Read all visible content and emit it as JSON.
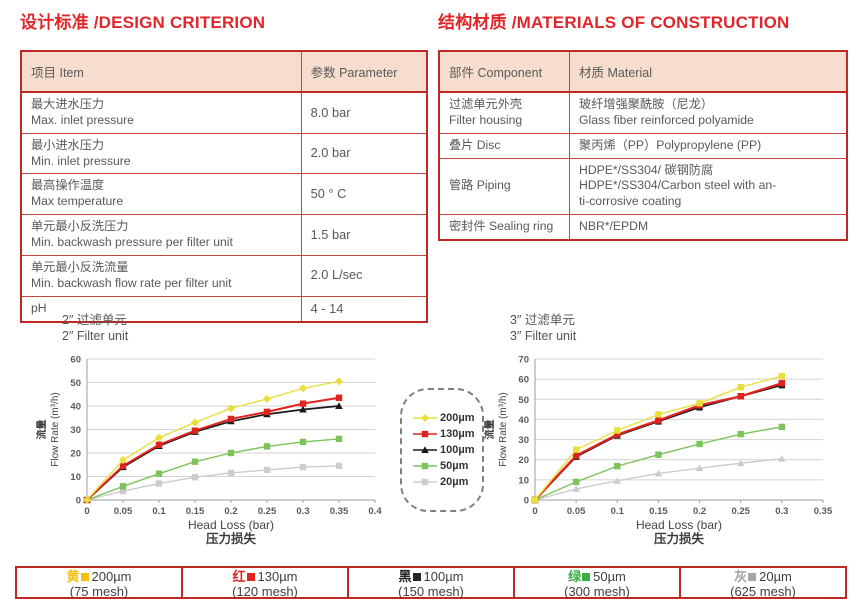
{
  "colors": {
    "title_red": "#e0262b",
    "border_red": "#c02725",
    "header_bg": "#f7ddcd",
    "body_text": "#595959"
  },
  "design_criterion": {
    "title": "设计标准 /DESIGN CRITERION",
    "headers": [
      "项目 Item",
      "参数 Parameter"
    ],
    "rows": [
      {
        "item": [
          "最大进水压力",
          "Max. inlet pressure"
        ],
        "value": "8.0 bar"
      },
      {
        "item": [
          "最小进水压力",
          "Min. inlet pressure"
        ],
        "value": "2.0 bar"
      },
      {
        "item": [
          "最高操作温度",
          "Max temperature"
        ],
        "value": "50 ° C"
      },
      {
        "item": [
          "单元最小反洗压力",
          "Min. backwash pressure per filter unit"
        ],
        "value": "1.5 bar"
      },
      {
        "item": [
          "单元最小反洗流量",
          "Min. backwash flow rate per filter unit"
        ],
        "value": "2.0 L/sec"
      },
      {
        "item": [
          "pH"
        ],
        "value": "4 - 14"
      }
    ]
  },
  "materials": {
    "title": "结构材质 /MATERIALS OF CONSTRUCTION",
    "headers": [
      "部件 Component",
      "材质 Material"
    ],
    "rows": [
      {
        "component": [
          "过滤单元外壳",
          "Filter housing"
        ],
        "material": [
          "玻纤增强聚酰胺（尼龙）",
          "Glass fiber reinforced polyamide"
        ]
      },
      {
        "component": [
          "叠片 Disc"
        ],
        "material": [
          "聚丙烯（PP）Polypropylene (PP)"
        ]
      },
      {
        "component": [
          "管路 Piping"
        ],
        "material": [
          "HDPE*/SS304/ 碳钢防腐",
          "HDPE*/SS304/Carbon steel with an-",
          "ti-corrosive coating"
        ]
      },
      {
        "component": [
          "密封件 Sealing ring"
        ],
        "material": [
          "NBR*/EPDM"
        ]
      }
    ]
  },
  "chart_data": [
    {
      "type": "line",
      "title_zh": "2″ 过滤单元",
      "title_en": "2″ Filter unit",
      "ylabel_zh": "流量",
      "ylabel_en": "Flow Rate (m³/h)",
      "xlabel_en": "Head Loss (bar)",
      "xlabel_zh": "压力损失",
      "xlim": [
        0,
        0.4
      ],
      "ylim": [
        0,
        60
      ],
      "ytick_step": 10,
      "xticks": [
        "0",
        "0.05",
        "0.1",
        "0.15",
        "0.2",
        "0.25",
        "0.3",
        "0.35",
        "0.4"
      ],
      "x": [
        0,
        0.05,
        0.1,
        0.15,
        0.2,
        0.25,
        0.3,
        0.35
      ],
      "grid": true,
      "legend_position": "center-right-external",
      "series": [
        {
          "name": "200µm",
          "color": "#e8df3a",
          "marker": "diamond",
          "width": 1.4,
          "values": [
            0,
            17,
            26.5,
            33,
            39,
            43,
            47.5,
            50.5
          ]
        },
        {
          "name": "130µm",
          "color": "#e0231d",
          "marker": "square",
          "width": 2,
          "values": [
            0,
            14.5,
            23.5,
            29.5,
            34.5,
            37.5,
            41,
            43.5
          ]
        },
        {
          "name": "100µm",
          "color": "#1a1a1a",
          "marker": "triangle",
          "width": 1.7,
          "values": [
            0,
            14,
            23,
            29,
            33.5,
            36.5,
            38.5,
            40
          ]
        },
        {
          "name": "50µm",
          "color": "#7cc35a",
          "marker": "square",
          "width": 1.4,
          "values": [
            0,
            5.8,
            11.2,
            16.3,
            20,
            22.8,
            24.7,
            26
          ]
        },
        {
          "name": "20µm",
          "color": "#cccccc",
          "marker": "square",
          "width": 1.4,
          "values": [
            0,
            3.8,
            7,
            9.7,
            11.5,
            12.8,
            14,
            14.5
          ]
        }
      ]
    },
    {
      "type": "line",
      "title_zh": "3″ 过滤单元",
      "title_en": "3″ Filter unit",
      "ylabel_zh": "流量",
      "ylabel_en": "Flow Rate (m³/h)",
      "xlabel_en": "Head Loss (bar)",
      "xlabel_zh": "压力损失",
      "xlim": [
        0,
        0.35
      ],
      "ylim": [
        0,
        70
      ],
      "ytick_step": 10,
      "xticks": [
        "0",
        "0.05",
        "0.1",
        "0.15",
        "0.2",
        "0.25",
        "0.3",
        "0.35"
      ],
      "x": [
        0,
        0.05,
        0.1,
        0.15,
        0.2,
        0.25,
        0.3
      ],
      "grid": true,
      "series": [
        {
          "name": "200µm",
          "color": "#e8df3a",
          "marker": "square",
          "width": 1.4,
          "values": [
            0,
            25,
            34.5,
            42.5,
            48,
            56,
            61.5
          ]
        },
        {
          "name": "130µm",
          "color": "#e0231d",
          "marker": "square",
          "width": 2.2,
          "values": [
            0,
            22,
            32.5,
            39.5,
            47,
            51.5,
            58
          ]
        },
        {
          "name": "100µm",
          "color": "#1a1a1a",
          "marker": "square",
          "width": 1.7,
          "values": [
            0,
            21.5,
            32,
            39,
            46,
            51.5,
            57
          ]
        },
        {
          "name": "50µm",
          "color": "#7cc35a",
          "marker": "square",
          "width": 1.4,
          "values": [
            0,
            9,
            16.8,
            22.5,
            27.8,
            32.7,
            36.3
          ]
        },
        {
          "name": "20µm",
          "color": "#cccccc",
          "marker": "triangle",
          "width": 1.4,
          "values": [
            0,
            5.5,
            9.5,
            13.2,
            15.8,
            18.3,
            20.5
          ]
        }
      ]
    }
  ],
  "center_legend": {
    "entries": [
      {
        "label": "200µm",
        "color": "#e8df3a",
        "marker": "diamond"
      },
      {
        "label": "130µm",
        "color": "#e0231d",
        "marker": "square"
      },
      {
        "label": "100µm",
        "color": "#1a1a1a",
        "marker": "triangle"
      },
      {
        "label": "50µm",
        "color": "#7cc35a",
        "marker": "square"
      },
      {
        "label": "20µm",
        "color": "#cccccc",
        "marker": "square"
      }
    ]
  },
  "bottom_legend": {
    "cells": [
      {
        "cn": "黄",
        "color": "#f5c00e",
        "label": "200µm",
        "mesh": "(75 mesh)"
      },
      {
        "cn": "红",
        "color": "#e0231d",
        "label": "130µm",
        "mesh": "(120 mesh)"
      },
      {
        "cn": "黑",
        "color": "#262626",
        "label": "100µm",
        "mesh": "(150 mesh)"
      },
      {
        "cn": "绿",
        "color": "#3cb045",
        "label": "50µm",
        "mesh": "(300 mesh)"
      },
      {
        "cn": "灰",
        "color": "#a6a6a6",
        "label": "20µm",
        "mesh": "(625 mesh)"
      }
    ]
  }
}
